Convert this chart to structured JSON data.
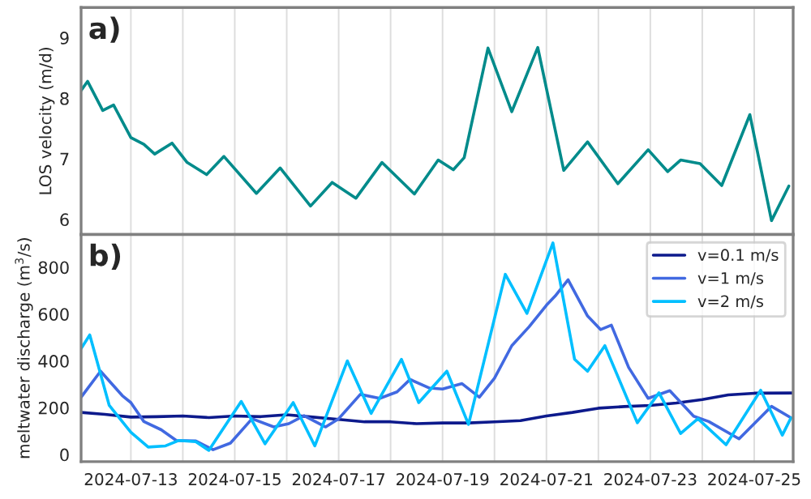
{
  "chart_data": [
    {
      "type": "line",
      "ylabel": "LOS velocity (m/d)",
      "annotations": [
        "a)"
      ],
      "grid": "x",
      "tick_labels": "y",
      "xlim": [
        "2024-07-12T01:00",
        "2024-07-25T18:00"
      ],
      "ylim": [
        5.75,
        9.5
      ],
      "yticks": [
        6,
        7,
        8,
        9
      ],
      "xticks": [
        {
          "value": "2024-07-13",
          "label": null
        },
        {
          "value": "2024-07-14",
          "label": null
        },
        {
          "value": "2024-07-15",
          "label": null
        },
        {
          "value": "2024-07-16",
          "label": null
        },
        {
          "value": "2024-07-17",
          "label": null
        },
        {
          "value": "2024-07-18",
          "label": null
        },
        {
          "value": "2024-07-19",
          "label": null
        },
        {
          "value": "2024-07-20",
          "label": null
        },
        {
          "value": "2024-07-21",
          "label": null
        },
        {
          "value": "2024-07-22",
          "label": null
        },
        {
          "value": "2024-07-23",
          "label": null
        },
        {
          "value": "2024-07-24",
          "label": null
        },
        {
          "value": "2024-07-25",
          "label": null
        }
      ],
      "series": [
        {
          "color": "#008b8b",
          "x": [
            "2024-07-12T01:00",
            "2024-07-12T04:00",
            "2024-07-12T11:00",
            "2024-07-12T16:00",
            "2024-07-13T00:00",
            "2024-07-13T06:00",
            "2024-07-13T11:00",
            "2024-07-13T19:00",
            "2024-07-14T02:00",
            "2024-07-14T11:00",
            "2024-07-14T19:00",
            "2024-07-15T10:00",
            "2024-07-15T21:00",
            "2024-07-16T11:00",
            "2024-07-16T21:00",
            "2024-07-17T08:00",
            "2024-07-17T20:00",
            "2024-07-18T11:00",
            "2024-07-18T22:00",
            "2024-07-19T05:00",
            "2024-07-19T10:00",
            "2024-07-19T21:00",
            "2024-07-20T08:00",
            "2024-07-20T20:00",
            "2024-07-21T08:00",
            "2024-07-21T19:00",
            "2024-07-22T09:00",
            "2024-07-22T23:00",
            "2024-07-23T08:00",
            "2024-07-23T14:00",
            "2024-07-23T23:00",
            "2024-07-24T09:00",
            "2024-07-24T22:00",
            "2024-07-25T08:00",
            "2024-07-25T16:00"
          ],
          "values": [
            8.13,
            8.28,
            7.8,
            7.89,
            7.35,
            7.24,
            7.08,
            7.26,
            6.94,
            6.74,
            7.04,
            6.43,
            6.85,
            6.22,
            6.61,
            6.35,
            6.94,
            6.42,
            6.98,
            6.82,
            7.02,
            8.83,
            7.78,
            8.84,
            6.81,
            7.28,
            6.59,
            7.15,
            6.79,
            6.98,
            6.92,
            6.56,
            7.73,
            5.98,
            6.55
          ]
        }
      ]
    },
    {
      "type": "line",
      "ylabel": "meltwater discharge (m$^{3}$/s)",
      "annotations": [
        "b)"
      ],
      "grid": "x",
      "legend": "top right",
      "xlim": [
        "2024-07-12T01:00",
        "2024-07-25T18:00"
      ],
      "ylim": [
        -30,
        940
      ],
      "yticks": [
        0,
        200,
        400,
        600,
        800
      ],
      "xticks": [
        {
          "value": "2024-07-13",
          "label": "2024-07-13"
        },
        {
          "value": "2024-07-14",
          "label": null
        },
        {
          "value": "2024-07-15",
          "label": "2024-07-15"
        },
        {
          "value": "2024-07-16",
          "label": null
        },
        {
          "value": "2024-07-17",
          "label": "2024-07-17"
        },
        {
          "value": "2024-07-18",
          "label": null
        },
        {
          "value": "2024-07-19",
          "label": "2024-07-19"
        },
        {
          "value": "2024-07-20",
          "label": null
        },
        {
          "value": "2024-07-21",
          "label": "2024-07-21"
        },
        {
          "value": "2024-07-22",
          "label": null
        },
        {
          "value": "2024-07-23",
          "label": "2024-07-23"
        },
        {
          "value": "2024-07-24",
          "label": null
        },
        {
          "value": "2024-07-25",
          "label": "2024-07-25"
        }
      ],
      "series": [
        {
          "name": "v=0.1 m/s",
          "color": "#0d1a8c",
          "x": [
            "2024-07-12T01:00",
            "2024-07-12T12:00",
            "2024-07-13T00:00",
            "2024-07-13T12:00",
            "2024-07-14T00:00",
            "2024-07-14T12:00",
            "2024-07-15T00:00",
            "2024-07-15T12:00",
            "2024-07-16T00:00",
            "2024-07-16T12:00",
            "2024-07-17T00:00",
            "2024-07-17T12:00",
            "2024-07-18T00:00",
            "2024-07-18T12:00",
            "2024-07-19T00:00",
            "2024-07-19T12:00",
            "2024-07-20T00:00",
            "2024-07-20T12:00",
            "2024-07-21T00:00",
            "2024-07-21T12:00",
            "2024-07-22T00:00",
            "2024-07-22T12:00",
            "2024-07-23T00:00",
            "2024-07-23T12:00",
            "2024-07-24T00:00",
            "2024-07-24T12:00",
            "2024-07-25T00:00",
            "2024-07-25T18:00"
          ],
          "values": [
            180,
            172,
            160,
            162,
            165,
            158,
            165,
            162,
            170,
            160,
            150,
            140,
            140,
            132,
            135,
            135,
            140,
            145,
            165,
            180,
            198,
            205,
            210,
            220,
            235,
            255,
            262,
            263
          ]
        },
        {
          "name": "v=1 m/s",
          "color": "#4169e1",
          "x": [
            "2024-07-12T01:00",
            "2024-07-12T10:00",
            "2024-07-12T20:00",
            "2024-07-13T00:00",
            "2024-07-13T06:00",
            "2024-07-13T14:00",
            "2024-07-13T21:00",
            "2024-07-14T06:00",
            "2024-07-14T14:00",
            "2024-07-14T22:00",
            "2024-07-15T08:00",
            "2024-07-15T18:00",
            "2024-07-16T01:00",
            "2024-07-16T08:00",
            "2024-07-16T18:00",
            "2024-07-17T00:00",
            "2024-07-17T10:00",
            "2024-07-17T19:00",
            "2024-07-18T03:00",
            "2024-07-18T09:00",
            "2024-07-18T18:00",
            "2024-07-19T00:00",
            "2024-07-19T09:00",
            "2024-07-19T17:00",
            "2024-07-20T00:00",
            "2024-07-20T08:00",
            "2024-07-20T16:00",
            "2024-07-21T00:00",
            "2024-07-21T04:00",
            "2024-07-21T10:00",
            "2024-07-21T19:00",
            "2024-07-22T01:00",
            "2024-07-22T06:00",
            "2024-07-22T14:00",
            "2024-07-22T23:00",
            "2024-07-23T09:00",
            "2024-07-23T20:00",
            "2024-07-24T03:00",
            "2024-07-24T17:00",
            "2024-07-25T08:00",
            "2024-07-25T17:00"
          ],
          "values": [
            245,
            356,
            252,
            222,
            141,
            106,
            60,
            58,
            21,
            49,
            153,
            118,
            132,
            166,
            118,
            153,
            257,
            240,
            268,
            321,
            284,
            280,
            303,
            245,
            326,
            465,
            546,
            638,
            677,
            747,
            592,
            534,
            553,
            372,
            240,
            273,
            164,
            141,
            67,
            206,
            157
          ]
        },
        {
          "name": "v=2 m/s",
          "color": "#00bfff",
          "x": [
            "2024-07-12T01:00",
            "2024-07-12T05:00",
            "2024-07-12T14:00",
            "2024-07-13T00:00",
            "2024-07-13T08:00",
            "2024-07-13T16:00",
            "2024-07-13T22:00",
            "2024-07-14T06:00",
            "2024-07-14T12:00",
            "2024-07-15T03:00",
            "2024-07-15T14:00",
            "2024-07-16T03:00",
            "2024-07-16T13:00",
            "2024-07-17T04:00",
            "2024-07-17T15:00",
            "2024-07-18T05:00",
            "2024-07-18T13:00",
            "2024-07-19T02:00",
            "2024-07-19T12:00",
            "2024-07-20T05:00",
            "2024-07-20T15:00",
            "2024-07-21T03:00",
            "2024-07-21T13:00",
            "2024-07-21T19:00",
            "2024-07-22T03:00",
            "2024-07-22T18:00",
            "2024-07-23T04:00",
            "2024-07-23T14:00",
            "2024-07-23T22:00",
            "2024-07-24T11:00",
            "2024-07-25T03:00",
            "2024-07-25T13:00",
            "2024-07-25T17:00"
          ],
          "values": [
            453,
            511,
            210,
            95,
            32,
            37,
            60,
            55,
            18,
            227,
            46,
            222,
            37,
            400,
            176,
            407,
            222,
            356,
            129,
            770,
            603,
            904,
            407,
            356,
            465,
            136,
            264,
            90,
            153,
            42,
            275,
            83,
            157
          ]
        }
      ]
    }
  ]
}
